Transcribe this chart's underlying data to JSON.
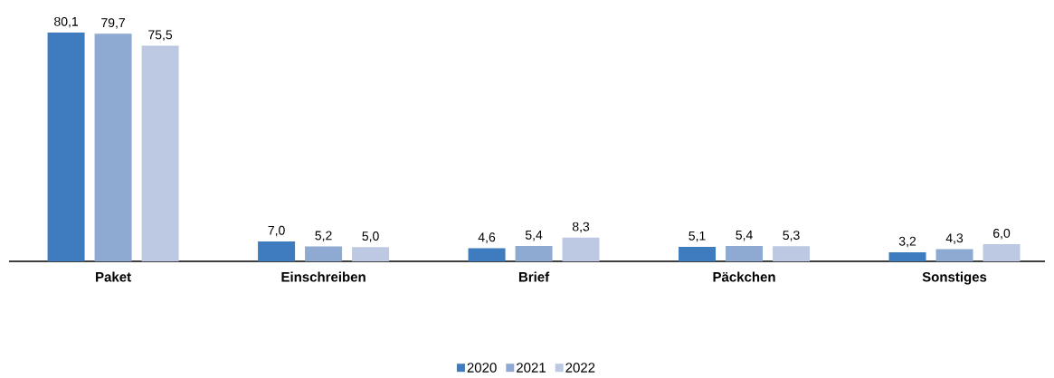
{
  "chart_data": {
    "type": "bar",
    "categories": [
      "Paket",
      "Einschreiben",
      "Brief",
      "Päckchen",
      "Sonstiges"
    ],
    "series": [
      {
        "name": "2020",
        "color": "#3f7bbf",
        "values": [
          80.1,
          7.0,
          4.6,
          5.1,
          3.2
        ],
        "value_labels": [
          "80,1",
          "7,0",
          "4,6",
          "5,1",
          "3,2"
        ]
      },
      {
        "name": "2021",
        "color": "#8eaad2",
        "values": [
          79.7,
          5.2,
          5.4,
          5.4,
          4.3
        ],
        "value_labels": [
          "79,7",
          "5,2",
          "5,4",
          "5,4",
          "4,3"
        ]
      },
      {
        "name": "2022",
        "color": "#bdc9e2",
        "values": [
          75.5,
          5.0,
          8.3,
          5.3,
          6.0
        ],
        "value_labels": [
          "75,5",
          "5,0",
          "8,3",
          "5,3",
          "6,0"
        ]
      }
    ],
    "legend": "bottom"
  }
}
